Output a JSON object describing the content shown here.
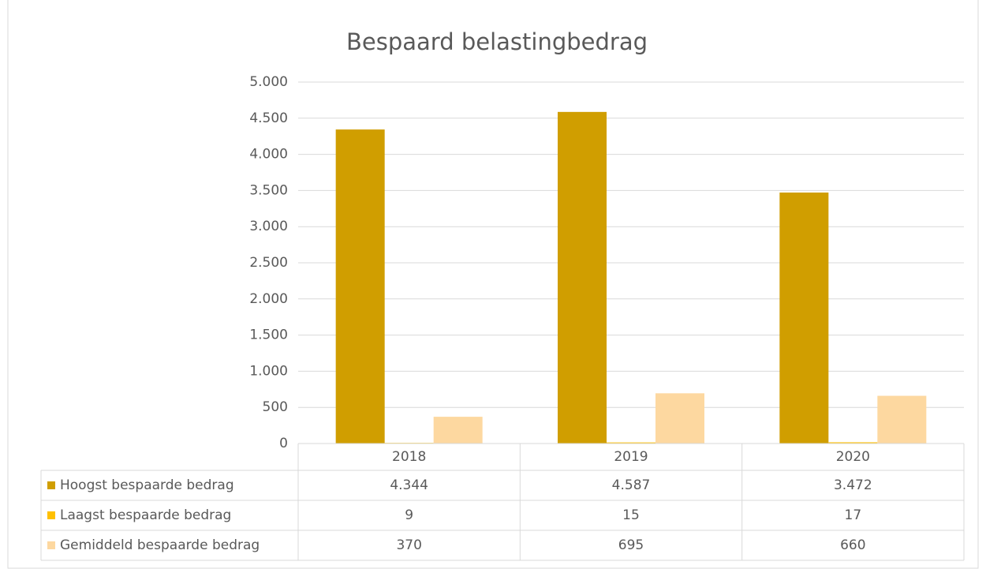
{
  "chart_data": {
    "type": "bar",
    "title": "Bespaard belastingbedrag",
    "categories": [
      "2018",
      "2019",
      "2020"
    ],
    "series": [
      {
        "name": "Hoogst bespaarde bedrag",
        "color": "#d09e00",
        "values": [
          4344,
          4587,
          3472
        ],
        "value_labels": [
          "4.344",
          "4.587",
          "3.472"
        ]
      },
      {
        "name": "Laagst bespaarde bedrag",
        "color": "#ffc000",
        "values": [
          9,
          15,
          17
        ]
      },
      {
        "name": "Gemiddeld bespaarde bedrag",
        "color": "#fdd8a0",
        "values": [
          370,
          695,
          660
        ]
      }
    ],
    "ylim": [
      0,
      5000
    ],
    "yticks": [
      0,
      500,
      {
        "value": 1000,
        "label": "1.000"
      },
      {
        "value": 1500,
        "label": "1.500"
      },
      {
        "value": 2000,
        "label": "2.000"
      },
      {
        "value": 2500,
        "label": "2.500"
      },
      {
        "value": 3000,
        "label": "3.000"
      },
      {
        "value": 3500,
        "label": "3.500"
      },
      {
        "value": 4000,
        "label": "4.000"
      },
      {
        "value": 4500,
        "label": "4.500"
      },
      {
        "value": 5000,
        "label": "5.000"
      }
    ],
    "grid": true,
    "legend": "table"
  }
}
